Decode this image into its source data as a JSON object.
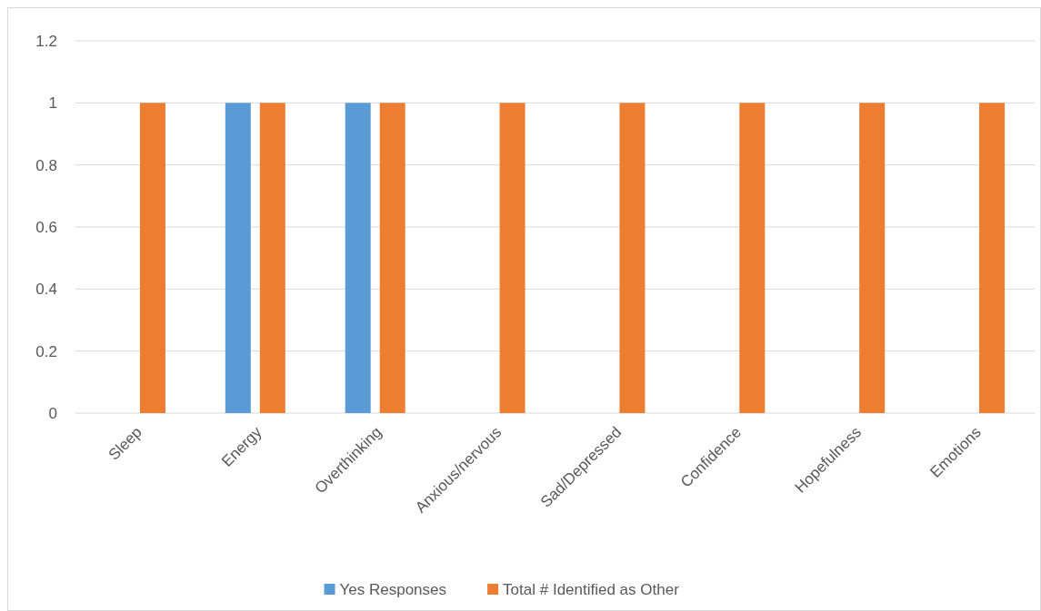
{
  "chart_data": {
    "type": "bar",
    "categories": [
      "Sleep",
      "Energy",
      "Overthinking",
      "Anxious/nervous",
      "Sad/Depressed",
      "Confidence",
      "Hopefulness",
      "Emotions"
    ],
    "series": [
      {
        "name": "Yes Responses",
        "color": "#5b9bd5",
        "values": [
          0,
          1,
          1,
          0,
          0,
          0,
          0,
          0
        ]
      },
      {
        "name": "Total # Identified as Other",
        "color": "#ed7d31",
        "values": [
          1,
          1,
          1,
          1,
          1,
          1,
          1,
          1
        ]
      }
    ],
    "ylim": [
      0,
      1.2
    ],
    "yticks": [
      0,
      {
        "value": 0.2,
        "label": "0.2"
      },
      {
        "value": 0.4,
        "label": "0.4"
      },
      {
        "value": 0.6,
        "label": "0.6"
      },
      {
        "value": 0.8,
        "label": "0.8"
      },
      1,
      {
        "value": 1.2,
        "label": "1.2"
      }
    ],
    "grid": "y",
    "legend": "bottom"
  }
}
